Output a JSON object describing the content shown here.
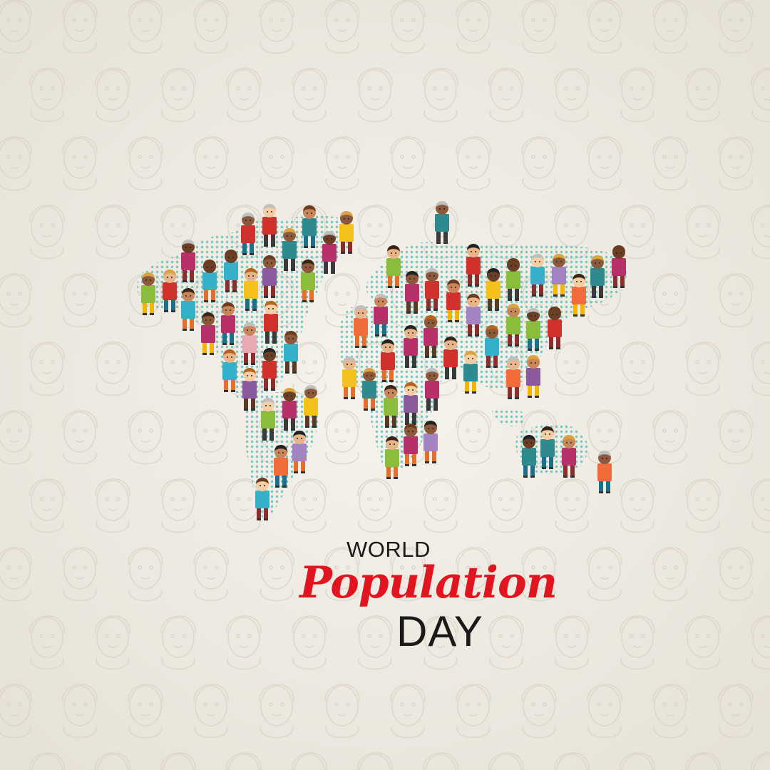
{
  "poster": {
    "title_line1": "WORLD",
    "title_line2": "Population",
    "title_line3": "DAY"
  },
  "illustration": {
    "subject": "world map made of people figures",
    "background_motif": "faint line-drawn faces"
  },
  "colors": {
    "background": "#ece8df",
    "background_center": "#f6f3ed",
    "sketch_lines": "#d8d2c6",
    "map_dots": "#5cc3bf",
    "title_dark": "#1a1a1a",
    "title_accent": "#e2141f",
    "figure_palette": [
      "#f26b3a",
      "#f5c21b",
      "#b8306a",
      "#a483c2",
      "#34b1c9",
      "#8bbd3c",
      "#d0312d",
      "#2f8a8e",
      "#e7a9b3",
      "#8a5a9c"
    ],
    "pants_palette": [
      "#f5b400",
      "#1f6f8b",
      "#8b2e2e",
      "#5a3a22",
      "#3b3b3b",
      "#e46f2c"
    ],
    "skin_palette": [
      "#f4cfa6",
      "#e8b48a",
      "#c9865a",
      "#8c5a3b",
      "#6b3f25"
    ]
  }
}
